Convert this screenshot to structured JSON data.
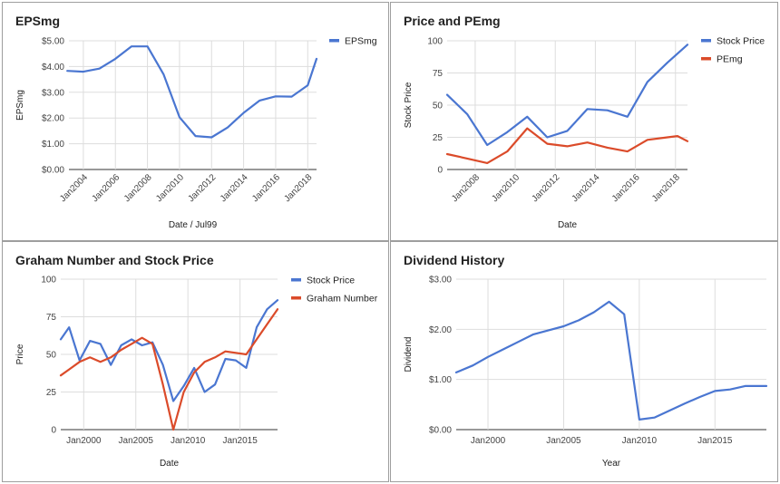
{
  "chart_data": [
    {
      "type": "line",
      "title": "EPSmg",
      "xlabel": "Date / Jul99",
      "ylabel": "EPSmg",
      "x_ticks": [
        "Jan2004",
        "Jan2006",
        "Jan2008",
        "Jan2010",
        "Jan2012",
        "Jan2014",
        "Jan2016",
        "Jan2018"
      ],
      "y_ticks": [
        "$0.00",
        "$1.00",
        "$2.00",
        "$3.00",
        "$4.00",
        "$5.00"
      ],
      "xlim": [
        2003.1,
        2018.55
      ],
      "ylim": [
        0,
        5
      ],
      "legend_position": "top-right",
      "series": [
        {
          "name": "EPSmg",
          "color": "#4a76d1",
          "x": [
            2003,
            2004,
            2005,
            2006,
            2007,
            2008,
            2009,
            2010,
            2011,
            2012,
            2013,
            2014,
            2015,
            2016,
            2017,
            2018,
            2018.55
          ],
          "values": [
            3.83,
            3.8,
            3.92,
            4.3,
            4.78,
            4.78,
            3.7,
            2.03,
            1.3,
            1.25,
            1.63,
            2.2,
            2.68,
            2.84,
            2.83,
            3.27,
            4.3
          ]
        }
      ]
    },
    {
      "type": "line",
      "title": "Price and PEmg",
      "xlabel": "Date",
      "ylabel": "Stock Price",
      "x_ticks": [
        "Jan2008",
        "Jan2010",
        "Jan2012",
        "Jan2014",
        "Jan2016",
        "Jan2018"
      ],
      "y_ticks": [
        "0",
        "25",
        "50",
        "75",
        "100"
      ],
      "xlim": [
        2006.6,
        2018.6
      ],
      "ylim": [
        0,
        100
      ],
      "legend_position": "top-right",
      "series": [
        {
          "name": "Stock Price",
          "color": "#4a76d1",
          "x": [
            2006.6,
            2007.6,
            2008.6,
            2009.6,
            2010.6,
            2011.6,
            2012.6,
            2013.6,
            2014.6,
            2015.6,
            2016.6,
            2017.6,
            2018.6
          ],
          "values": [
            58,
            43,
            19,
            29,
            41,
            25,
            30,
            47,
            46,
            41,
            68,
            83,
            97
          ]
        },
        {
          "name": "PEmg",
          "color": "#db4b2a",
          "x": [
            2006.6,
            2007.6,
            2008.6,
            2009.6,
            2010.6,
            2011.6,
            2012.6,
            2013.6,
            2014.6,
            2015.6,
            2016.6,
            2017.6,
            2018.1,
            2018.6
          ],
          "values": [
            12,
            8.5,
            5,
            14,
            32,
            20,
            18,
            21,
            17,
            14,
            23,
            25,
            26,
            22
          ]
        }
      ]
    },
    {
      "type": "line",
      "title": "Graham Number and Stock Price",
      "xlabel": "Date",
      "ylabel": "Price",
      "x_ticks": [
        "Jan2000",
        "Jan2005",
        "Jan2010",
        "Jan2015"
      ],
      "y_ticks": [
        "0",
        "25",
        "50",
        "75",
        "100"
      ],
      "xlim": [
        1997.8,
        2018.6
      ],
      "ylim": [
        0,
        100
      ],
      "legend_position": "top-right",
      "series": [
        {
          "name": "Stock Price",
          "color": "#4a76d1",
          "x": [
            1997.8,
            1998.6,
            1999.6,
            2000.6,
            2001.6,
            2002.6,
            2003.6,
            2004.6,
            2005.6,
            2006.6,
            2007.6,
            2008.6,
            2009.6,
            2010.6,
            2011.6,
            2012.6,
            2013.6,
            2014.6,
            2015.6,
            2016.6,
            2017.6,
            2018.6
          ],
          "values": [
            60,
            68,
            46,
            59,
            57,
            43,
            56,
            60,
            56,
            58,
            43,
            19,
            29,
            41,
            25,
            30,
            47,
            46,
            41,
            68,
            80,
            86
          ]
        },
        {
          "name": "Graham Number",
          "color": "#db4b2a",
          "x": [
            1997.8,
            1998.6,
            1999.6,
            2000.6,
            2001.6,
            2002.6,
            2003.6,
            2004.6,
            2005.6,
            2006.6,
            2007.6,
            2008.6,
            2009.6,
            2010.6,
            2011.6,
            2012.6,
            2013.6,
            2014.6,
            2015.6,
            2016.6,
            2017.6,
            2018.6
          ],
          "values": [
            36,
            40,
            45,
            48,
            45,
            48,
            53,
            57,
            61,
            57,
            30,
            0,
            25,
            38,
            45,
            48,
            52,
            51,
            50,
            60,
            70,
            80
          ]
        }
      ]
    },
    {
      "type": "line",
      "title": "Dividend History",
      "xlabel": "Year",
      "ylabel": "Dividend",
      "x_ticks": [
        "Jan2000",
        "Jan2005",
        "Jan2010",
        "Jan2015"
      ],
      "y_ticks": [
        "$0.00",
        "$1.00",
        "$2.00",
        "$3.00"
      ],
      "xlim": [
        1997.9,
        2018.4
      ],
      "ylim": [
        0,
        3
      ],
      "legend_position": "none",
      "series": [
        {
          "name": "",
          "color": "#4a76d1",
          "x": [
            1997.9,
            1999,
            2000,
            2001,
            2002,
            2003,
            2004,
            2005,
            2006,
            2007,
            2008,
            2009,
            2010,
            2011,
            2012,
            2013,
            2014,
            2015,
            2016,
            2017,
            2018.4
          ],
          "values": [
            1.14,
            1.28,
            1.45,
            1.6,
            1.75,
            1.9,
            1.98,
            2.06,
            2.18,
            2.34,
            2.55,
            2.3,
            0.2,
            0.24,
            0.38,
            0.52,
            0.65,
            0.77,
            0.8,
            0.87,
            0.87
          ]
        }
      ]
    }
  ]
}
